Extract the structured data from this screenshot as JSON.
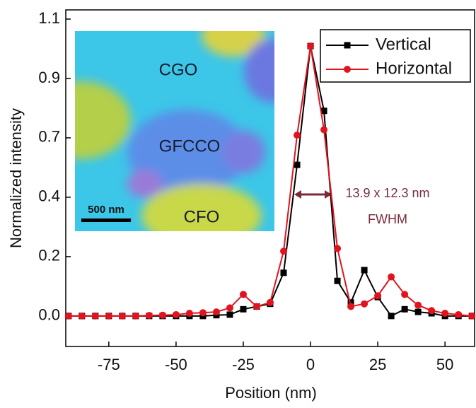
{
  "chart_data": {
    "type": "line",
    "x_label": "Position (nm)",
    "y_label": "Normalized intensity",
    "x": [
      -90,
      -85,
      -80,
      -75,
      -70,
      -65,
      -60,
      -55,
      -50,
      -45,
      -40,
      -35,
      -30,
      -25,
      -20,
      -15,
      -10,
      -5,
      0,
      5,
      10,
      15,
      20,
      25,
      30,
      35,
      40,
      45,
      50,
      55,
      60
    ],
    "series": [
      {
        "name": "Vertical",
        "color": "#000000",
        "marker": "square",
        "values": [
          0,
          0,
          0,
          0,
          0,
          0,
          0,
          0,
          0,
          0,
          0,
          0.003,
          0.005,
          0.025,
          0.035,
          0.045,
          0.16,
          0.56,
          1.0,
          0.76,
          0.13,
          0.05,
          0.17,
          0.07,
          0.0,
          0.025,
          0.015,
          0.01,
          0.0,
          0.0,
          0.0
        ]
      },
      {
        "name": "Horizontal",
        "color": "#e0141e",
        "marker": "circle",
        "values": [
          0,
          0,
          0,
          0,
          0,
          0,
          0.002,
          0.003,
          0.005,
          0.01,
          0.012,
          0.015,
          0.03,
          0.08,
          0.035,
          0.05,
          0.24,
          0.67,
          1.0,
          0.69,
          0.25,
          0.035,
          0.045,
          0.075,
          0.145,
          0.08,
          0.04,
          0.02,
          0.01,
          0.005,
          0.0
        ]
      }
    ],
    "xlim": [
      -91,
      61
    ],
    "ylim": [
      -0.113,
      1.134
    ],
    "xticks": [
      -75,
      -50,
      -25,
      0,
      25,
      50
    ],
    "yticks": [
      {
        "value": 0,
        "label": "0.0"
      },
      {
        "value": 0.22,
        "label": "0.2"
      },
      {
        "value": 0.44,
        "label": "0.4"
      },
      {
        "value": 0.66,
        "label": "0.7"
      },
      {
        "value": 0.88,
        "label": "0.9"
      },
      1.1
    ],
    "legend": "upper right",
    "annotations": [
      "13.9 x 12.3 nm",
      "FWHM"
    ],
    "inset_labels": [
      "CGO",
      "GFCCO",
      "CFO",
      "500 nm"
    ]
  }
}
